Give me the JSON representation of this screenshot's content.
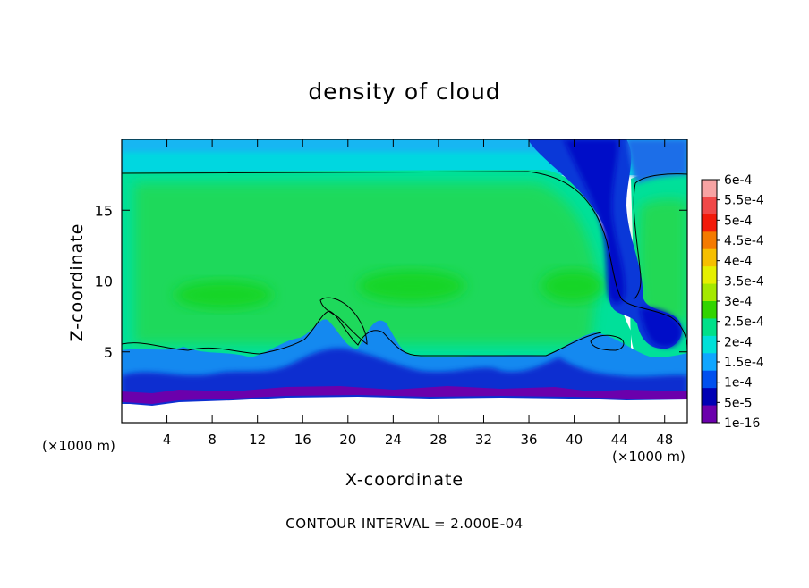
{
  "chart_data": {
    "type": "heatmap",
    "title": "density of cloud",
    "xlabel": "X-coordinate",
    "ylabel": "Z-coordinate",
    "x_unit_label": "(×1000 m)",
    "footer": "CONTOUR INTERVAL = 2.000E-04",
    "xlim": [
      0,
      50
    ],
    "ylim": [
      0,
      20
    ],
    "x_ticks": [
      4,
      8,
      12,
      16,
      20,
      24,
      28,
      32,
      36,
      40,
      44,
      48
    ],
    "y_ticks": [
      5,
      10,
      15
    ],
    "contour_interval": 0.0002,
    "colorbar": {
      "labels": [
        "6e-4",
        "5.5e-4",
        "5e-4",
        "4.5e-4",
        "4e-4",
        "3.5e-4",
        "3e-4",
        "2.5e-4",
        "2e-4",
        "1.5e-4",
        "1e-4",
        "5e-5",
        "1e-16"
      ],
      "colors": [
        "#f7a3a3",
        "#f04848",
        "#f21a0a",
        "#f47a00",
        "#f6bf00",
        "#e5ef00",
        "#a4e800",
        "#32d400",
        "#00e089",
        "#00e0d8",
        "#0fa6ff",
        "#0050ee",
        "#0000b4",
        "#6b00ac"
      ]
    },
    "regions": [
      {
        "level": "2.5e-4 to 3e-4",
        "x_range": [
          0,
          42
        ],
        "z_range": [
          5,
          17.5
        ]
      },
      {
        "level": "1e-16 to 5e-5",
        "x_range": [
          0,
          50
        ],
        "z_range": [
          1.5,
          3
        ]
      },
      {
        "level": "5e-5 to 1e-4",
        "x_range": [
          38,
          48
        ],
        "z_range": [
          6,
          20
        ]
      }
    ]
  }
}
